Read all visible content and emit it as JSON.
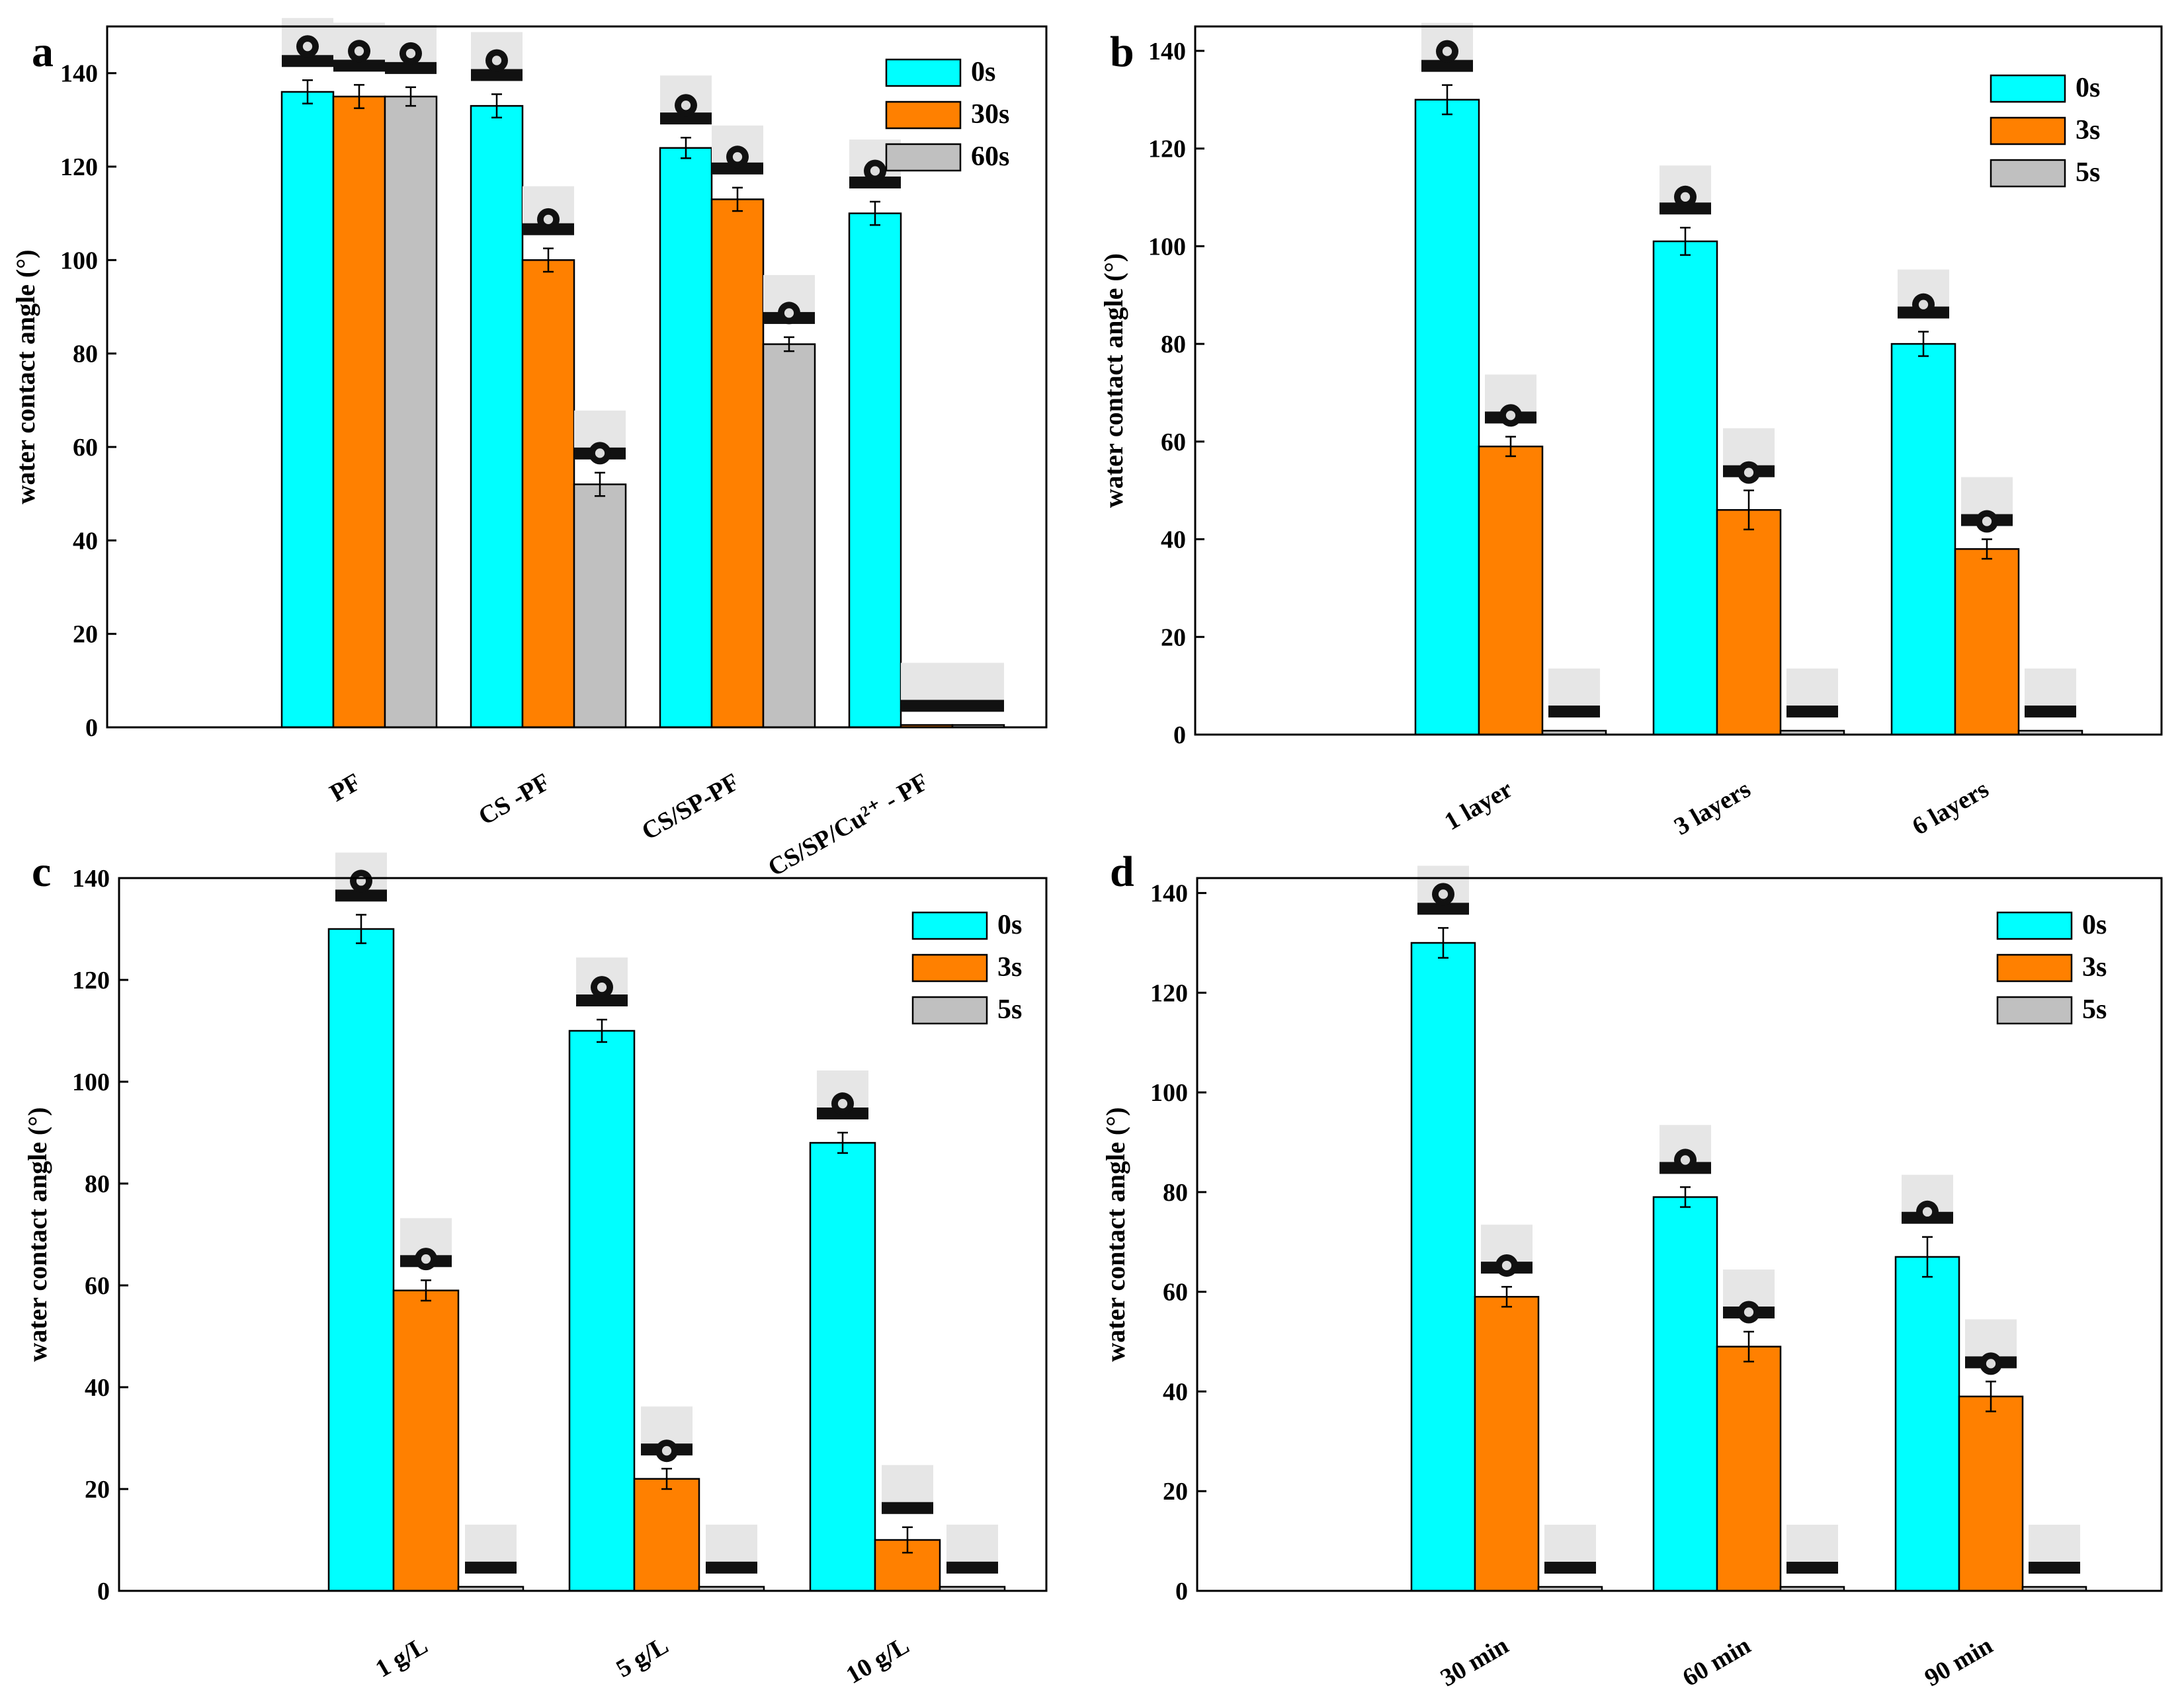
{
  "colors": {
    "cyan": "#00FFFF",
    "orange": "#FF8000",
    "gray": "#C0C0C0",
    "axis": "#000000",
    "drop_bg": "#E6E6E6",
    "drop": "#111111"
  },
  "chart_data": [
    {
      "panel_label": "a",
      "type": "bar",
      "ylabel": "water contact angle (°)",
      "ylim": [
        0,
        150
      ],
      "yticks": [
        "0",
        "20",
        "40",
        "60",
        "80",
        "100",
        "120",
        "140"
      ],
      "categories": [
        "PF",
        "CS -PF",
        "CS/SP-PF",
        "CS/SP/Cu²⁺ - PF"
      ],
      "legend_position": "top-right",
      "series": [
        {
          "name": "0s",
          "color": "cyan",
          "values": [
            136,
            133,
            124,
            110
          ],
          "errors": [
            2.5,
            2.5,
            2.2,
            2.5
          ]
        },
        {
          "name": "30s",
          "color": "orange",
          "values": [
            135,
            100,
            113,
            0.5
          ],
          "errors": [
            2.5,
            2.5,
            2.5,
            0
          ]
        },
        {
          "name": "60s",
          "color": "gray",
          "values": [
            135,
            52,
            82,
            0.5
          ],
          "errors": [
            2.0,
            2.5,
            1.5,
            0
          ]
        }
      ],
      "droplet_contact_angles": [
        [
          140,
          140,
          140
        ],
        [
          140,
          110,
          60
        ],
        [
          130,
          120,
          85
        ],
        [
          120,
          5,
          5
        ]
      ]
    },
    {
      "panel_label": "b",
      "type": "bar",
      "ylabel": "water contact angle (°)",
      "ylim": [
        0,
        145
      ],
      "yticks": [
        "0",
        "20",
        "40",
        "60",
        "80",
        "100",
        "120",
        "140"
      ],
      "categories": [
        "1 layer",
        "3 layers",
        "6 layers"
      ],
      "legend_position": "top-right",
      "series": [
        {
          "name": "0s",
          "color": "cyan",
          "values": [
            130,
            101,
            80
          ],
          "errors": [
            3,
            2.8,
            2.5
          ]
        },
        {
          "name": "3s",
          "color": "orange",
          "values": [
            59,
            46,
            38
          ],
          "errors": [
            2,
            4,
            2
          ]
        },
        {
          "name": "5s",
          "color": "gray",
          "values": [
            0.8,
            0.8,
            0.8
          ],
          "errors": [
            0,
            0,
            0
          ]
        }
      ],
      "droplet_contact_angles": [
        [
          140,
          70,
          5
        ],
        [
          120,
          50,
          5
        ],
        [
          100,
          40,
          5
        ]
      ]
    },
    {
      "panel_label": "c",
      "type": "bar",
      "ylabel": "water contact angle (°)",
      "ylim": [
        0,
        140
      ],
      "yticks": [
        "0",
        "20",
        "40",
        "60",
        "80",
        "100",
        "120",
        "140"
      ],
      "categories": [
        "1 g/L",
        "5 g/L",
        "10 g/L"
      ],
      "legend_position": "top-right",
      "series": [
        {
          "name": "0s",
          "color": "cyan",
          "values": [
            130,
            110,
            88
          ],
          "errors": [
            2.8,
            2.2,
            2
          ]
        },
        {
          "name": "3s",
          "color": "orange",
          "values": [
            59,
            22,
            10
          ],
          "errors": [
            2,
            2,
            2.5
          ]
        },
        {
          "name": "5s",
          "color": "gray",
          "values": [
            0.8,
            0.8,
            0.8
          ],
          "errors": [
            0,
            0,
            0
          ]
        }
      ],
      "droplet_contact_angles": [
        [
          140,
          70,
          5
        ],
        [
          130,
          20,
          5
        ],
        [
          110,
          10,
          5
        ]
      ]
    },
    {
      "panel_label": "d",
      "type": "bar",
      "ylabel": "water contact angle (°)",
      "ylim": [
        0,
        143
      ],
      "yticks": [
        "0",
        "20",
        "40",
        "60",
        "80",
        "100",
        "120",
        "140"
      ],
      "categories": [
        "30 min",
        "60 min",
        "90 min"
      ],
      "legend_position": "top-right",
      "series": [
        {
          "name": "0s",
          "color": "cyan",
          "values": [
            130,
            79,
            67
          ],
          "errors": [
            3,
            2,
            4
          ]
        },
        {
          "name": "3s",
          "color": "orange",
          "values": [
            59,
            49,
            39
          ],
          "errors": [
            2,
            3,
            3
          ]
        },
        {
          "name": "5s",
          "color": "gray",
          "values": [
            0.8,
            0.8,
            0.8
          ],
          "errors": [
            0,
            0,
            0
          ]
        }
      ],
      "droplet_contact_angles": [
        [
          140,
          70,
          5
        ],
        [
          100,
          60,
          5
        ],
        [
          90,
          40,
          5
        ]
      ]
    }
  ]
}
